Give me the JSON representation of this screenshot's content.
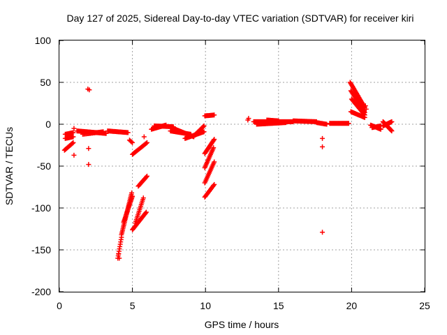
{
  "chart_data": {
    "type": "scatter",
    "title": "Day 127 of 2025, Sidereal Day-to-day VTEC variation (SDTVAR) for receiver kiri",
    "xlabel": "GPS time / hours",
    "ylabel": "SDTVAR / TECUs",
    "xlim": [
      0,
      25
    ],
    "ylim": [
      -200,
      100
    ],
    "xticks": [
      "0",
      "5",
      "10",
      "15",
      "20",
      "25"
    ],
    "yticks": [
      "100",
      "50",
      "0",
      "-50",
      "-100",
      "-150",
      "-200"
    ],
    "grid": true,
    "marker": "+",
    "series": [
      {
        "name": "SDTVAR",
        "color": "#ff0000",
        "segments": [
          {
            "x0": 0.35,
            "y0": -31,
            "x1": 0.95,
            "y1": -22,
            "n": 14
          },
          {
            "x0": 0.4,
            "y0": -17,
            "x1": 0.95,
            "y1": -15,
            "n": 10
          },
          {
            "x0": 0.4,
            "y0": -12,
            "x1": 0.95,
            "y1": -10,
            "n": 10
          },
          {
            "x0": 1.2,
            "y0": -8,
            "x1": 3.2,
            "y1": -11,
            "n": 40
          },
          {
            "x0": 1.6,
            "y0": -12,
            "x1": 3.0,
            "y1": -9,
            "n": 20
          },
          {
            "x0": 3.3,
            "y0": -8,
            "x1": 4.7,
            "y1": -10,
            "n": 24
          },
          {
            "x0": 4.8,
            "y0": -19,
            "x1": 5.0,
            "y1": -22,
            "n": 4
          },
          {
            "x0": 4.0,
            "y0": -160,
            "x1": 4.25,
            "y1": -135,
            "n": 10
          },
          {
            "x0": 4.25,
            "y0": -132,
            "x1": 4.95,
            "y1": -82,
            "n": 28
          },
          {
            "x0": 4.4,
            "y0": -117,
            "x1": 5.0,
            "y1": -86,
            "n": 22
          },
          {
            "x0": 5.0,
            "y0": -126,
            "x1": 5.95,
            "y1": -105,
            "n": 24
          },
          {
            "x0": 5.2,
            "y0": -118,
            "x1": 5.75,
            "y1": -88,
            "n": 16
          },
          {
            "x0": 5.4,
            "y0": -74,
            "x1": 6.0,
            "y1": -62,
            "n": 14
          },
          {
            "x0": 5.0,
            "y0": -36,
            "x1": 6.0,
            "y1": -22,
            "n": 20
          },
          {
            "x0": 6.3,
            "y0": -6,
            "x1": 7.3,
            "y1": -1,
            "n": 22
          },
          {
            "x0": 6.5,
            "y0": -2,
            "x1": 7.8,
            "y1": -3,
            "n": 22
          },
          {
            "x0": 7.8,
            "y0": -5,
            "x1": 9.2,
            "y1": -15,
            "n": 30
          },
          {
            "x0": 7.6,
            "y0": -8,
            "x1": 9.0,
            "y1": -12,
            "n": 26
          },
          {
            "x0": 8.6,
            "y0": -17,
            "x1": 9.9,
            "y1": -9,
            "n": 24
          },
          {
            "x0": 9.2,
            "y0": -14,
            "x1": 9.9,
            "y1": -2,
            "n": 16
          },
          {
            "x0": 9.95,
            "y0": -35,
            "x1": 10.6,
            "y1": -18,
            "n": 16
          },
          {
            "x0": 9.95,
            "y0": -52,
            "x1": 10.55,
            "y1": -28,
            "n": 16
          },
          {
            "x0": 9.95,
            "y0": -70,
            "x1": 10.6,
            "y1": -45,
            "n": 16
          },
          {
            "x0": 9.95,
            "y0": -87,
            "x1": 10.6,
            "y1": -72,
            "n": 14
          },
          {
            "x0": 9.95,
            "y0": 10,
            "x1": 10.6,
            "y1": 11,
            "n": 12
          },
          {
            "x0": 13.3,
            "y0": 3,
            "x1": 16.0,
            "y1": 3,
            "n": 50
          },
          {
            "x0": 13.5,
            "y0": 0,
            "x1": 15.5,
            "y1": 2,
            "n": 36
          },
          {
            "x0": 14.2,
            "y0": 5,
            "x1": 15.0,
            "y1": 4,
            "n": 14
          },
          {
            "x0": 16.0,
            "y0": 4,
            "x1": 17.6,
            "y1": 3,
            "n": 30
          },
          {
            "x0": 17.6,
            "y0": 2,
            "x1": 18.3,
            "y1": 0,
            "n": 12
          },
          {
            "x0": 18.5,
            "y0": 1,
            "x1": 19.8,
            "y1": 1,
            "n": 24
          },
          {
            "x0": 19.9,
            "y0": 50,
            "x1": 20.9,
            "y1": 20,
            "n": 26
          },
          {
            "x0": 19.95,
            "y0": 40,
            "x1": 20.9,
            "y1": 14,
            "n": 22
          },
          {
            "x0": 20.0,
            "y0": 30,
            "x1": 20.9,
            "y1": 11,
            "n": 20
          },
          {
            "x0": 19.95,
            "y0": 15,
            "x1": 20.9,
            "y1": 8,
            "n": 18
          },
          {
            "x0": 21.3,
            "y0": -1,
            "x1": 22.0,
            "y1": -6,
            "n": 14
          },
          {
            "x0": 21.4,
            "y0": -4,
            "x1": 22.0,
            "y1": -2,
            "n": 12
          },
          {
            "x0": 22.15,
            "y0": 3,
            "x1": 22.75,
            "y1": -8,
            "n": 20
          },
          {
            "x0": 22.15,
            "y0": -2,
            "x1": 22.75,
            "y1": 3,
            "n": 18
          }
        ],
        "points": [
          [
            1.0,
            -5
          ],
          [
            1.0,
            -37
          ],
          [
            1.95,
            42
          ],
          [
            2.05,
            41
          ],
          [
            2.0,
            -29
          ],
          [
            2.0,
            -48
          ],
          [
            5.8,
            -15
          ],
          [
            12.95,
            7
          ],
          [
            12.9,
            5
          ],
          [
            18.0,
            -17
          ],
          [
            18.0,
            -27
          ],
          [
            18.0,
            -129
          ],
          [
            20.95,
            22
          ],
          [
            21.0,
            18
          ],
          [
            4.1,
            -160
          ],
          [
            4.05,
            -155
          ]
        ]
      }
    ]
  }
}
